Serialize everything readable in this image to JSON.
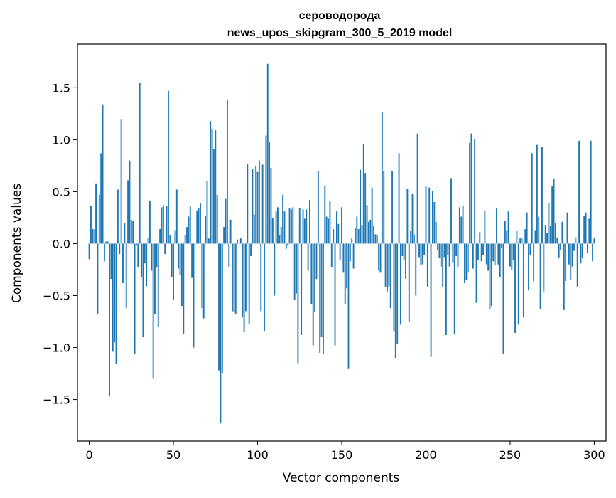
{
  "chart_data": {
    "type": "bar",
    "title": "сероводорода",
    "subtitle": "news_upos_skipgram_300_5_2019 model",
    "xlabel": "Vector components",
    "ylabel": "Components values",
    "xlim": [
      -7,
      307
    ],
    "ylim": [
      -1.9,
      1.92
    ],
    "xticks": [
      0,
      50,
      100,
      150,
      200,
      250,
      300
    ],
    "yticks": [
      -1.5,
      -1.0,
      -0.5,
      0.0,
      0.5,
      1.0,
      1.5
    ],
    "ytick_labels": [
      "−1.5",
      "−1.0",
      "−0.5",
      "0.0",
      "0.5",
      "1.0",
      "1.5"
    ],
    "bar_color": "#1f77b4",
    "grid": false,
    "values": [
      -0.15,
      0.36,
      0.14,
      0.14,
      0.58,
      -0.68,
      0.47,
      0.87,
      1.34,
      -0.17,
      0.02,
      0.02,
      -1.47,
      -0.34,
      -1.04,
      -0.95,
      -1.16,
      0.52,
      -0.1,
      1.2,
      -0.38,
      0.2,
      -0.62,
      0.61,
      0.8,
      0.23,
      0.22,
      -1.06,
      -0.02,
      -0.23,
      1.55,
      -0.32,
      -0.9,
      -0.19,
      -0.41,
      0.05,
      0.41,
      -0.26,
      -1.3,
      -0.68,
      -0.23,
      -0.8,
      0.14,
      0.35,
      0.37,
      -0.1,
      0.36,
      1.47,
      0.08,
      -0.32,
      -0.54,
      0.13,
      0.52,
      -0.24,
      -0.3,
      -0.6,
      -0.87,
      0.08,
      0.16,
      0.26,
      0.36,
      -0.33,
      -1.0,
      0.0,
      0.32,
      0.34,
      0.39,
      -0.62,
      -0.72,
      0.27,
      0.6,
      0.05,
      1.18,
      1.1,
      0.91,
      1.09,
      0.47,
      -1.22,
      -1.73,
      -1.25,
      0.16,
      0.43,
      1.38,
      -0.23,
      0.23,
      -0.65,
      -0.66,
      -0.68,
      0.04,
      0.01,
      0.05,
      -0.71,
      -0.85,
      -0.65,
      0.77,
      -0.77,
      -0.12,
      0.72,
      0.28,
      0.75,
      0.69,
      0.8,
      -0.65,
      0.76,
      -0.84,
      1.04,
      1.73,
      0.98,
      0.73,
      0.25,
      -0.5,
      0.31,
      0.35,
      0.08,
      0.16,
      0.47,
      0.31,
      -0.05,
      -0.02,
      0.34,
      0.33,
      0.35,
      -0.54,
      -0.48,
      -1.15,
      0.34,
      -0.88,
      0.33,
      0.24,
      0.33,
      -0.26,
      0.42,
      -0.58,
      -0.98,
      -0.66,
      -0.34,
      0.7,
      -1.05,
      -0.9,
      -1.06,
      0.56,
      0.26,
      0.24,
      0.41,
      -0.23,
      0.14,
      -0.98,
      0.31,
      0.19,
      -0.16,
      0.35,
      -0.28,
      -0.58,
      -0.43,
      -1.2,
      -0.17,
      0.05,
      -0.24,
      0.15,
      0.26,
      0.14,
      0.71,
      0.18,
      0.96,
      0.68,
      0.37,
      0.21,
      0.23,
      0.54,
      0.17,
      0.09,
      0.08,
      -0.26,
      -0.28,
      1.27,
      0.7,
      -0.42,
      -0.46,
      -0.41,
      -0.62,
      0.7,
      -0.84,
      -1.1,
      -0.97,
      0.87,
      -0.78,
      -0.12,
      -0.16,
      -0.34,
      0.53,
      -0.75,
      0.12,
      0.48,
      0.09,
      -0.5,
      1.06,
      -0.13,
      -0.2,
      -0.2,
      -0.11,
      0.55,
      -0.42,
      0.54,
      -1.09,
      0.51,
      0.4,
      0.21,
      -0.06,
      -0.14,
      -0.22,
      -0.42,
      -0.13,
      -0.88,
      -0.11,
      -0.22,
      0.63,
      -0.18,
      -0.87,
      -0.12,
      -0.23,
      0.35,
      0.26,
      0.36,
      -0.38,
      -0.35,
      -0.28,
      0.97,
      1.06,
      -0.24,
      1.01,
      -0.57,
      -0.16,
      0.11,
      -0.17,
      -0.11,
      0.32,
      -0.2,
      -0.26,
      -0.63,
      -0.6,
      -0.17,
      -0.21,
      0.34,
      -0.2,
      -0.32,
      -0.04,
      -1.06,
      0.22,
      0.13,
      0.31,
      -0.22,
      -0.25,
      -0.16,
      -0.86,
      0.12,
      -0.78,
      0.05,
      0.05,
      -0.71,
      0.14,
      0.3,
      -0.45,
      -0.11,
      0.87,
      -0.36,
      0.13,
      0.95,
      0.26,
      -0.63,
      0.93,
      -0.46,
      0.18,
      0.1,
      0.39,
      0.17,
      0.55,
      0.62,
      0.2,
      0.06,
      -0.14,
      -0.06,
      0.21,
      -0.64,
      -0.36,
      0.3,
      -0.2,
      -0.35,
      -0.22,
      -0.07,
      0.06,
      -0.42,
      0.99,
      -0.19,
      -0.14,
      0.27,
      0.3,
      -0.09,
      0.24,
      0.99,
      -0.17,
      0.05
    ]
  }
}
